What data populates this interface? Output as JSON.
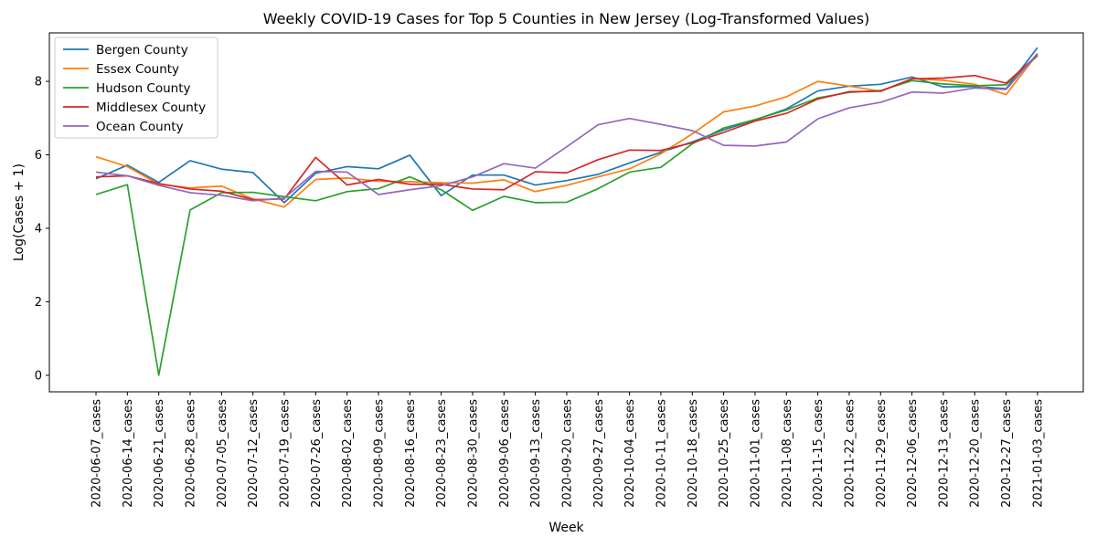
{
  "chart_data": {
    "type": "line",
    "title": "Weekly COVID-19 Cases for Top 5 Counties in New Jersey (Log-Transformed Values)",
    "xlabel": "Week",
    "ylabel": "Log(Cases + 1)",
    "ylim": [
      -0.45,
      9.32
    ],
    "yticks": [
      0,
      2,
      4,
      6,
      8
    ],
    "grid": false,
    "legend_position": "top-left",
    "categories": [
      "2020-06-07_cases",
      "2020-06-14_cases",
      "2020-06-21_cases",
      "2020-06-28_cases",
      "2020-07-05_cases",
      "2020-07-12_cases",
      "2020-07-19_cases",
      "2020-07-26_cases",
      "2020-08-02_cases",
      "2020-08-09_cases",
      "2020-08-16_cases",
      "2020-08-23_cases",
      "2020-08-30_cases",
      "2020-09-06_cases",
      "2020-09-13_cases",
      "2020-09-20_cases",
      "2020-09-27_cases",
      "2020-10-04_cases",
      "2020-10-11_cases",
      "2020-10-18_cases",
      "2020-10-25_cases",
      "2020-11-01_cases",
      "2020-11-08_cases",
      "2020-11-15_cases",
      "2020-11-22_cases",
      "2020-11-29_cases",
      "2020-12-06_cases",
      "2020-12-13_cases",
      "2020-12-20_cases",
      "2020-12-27_cases",
      "2021-01-03_cases"
    ],
    "series": [
      {
        "name": "Bergen County",
        "color": "#1f77b4",
        "values": [
          5.35,
          5.72,
          5.25,
          5.84,
          5.61,
          5.52,
          4.7,
          5.5,
          5.68,
          5.62,
          5.99,
          4.89,
          5.45,
          5.45,
          5.18,
          5.3,
          5.47,
          5.78,
          6.07,
          6.35,
          6.68,
          6.95,
          7.25,
          7.74,
          7.87,
          7.92,
          8.12,
          7.85,
          7.86,
          7.8,
          8.92
        ]
      },
      {
        "name": "Essex County",
        "color": "#ff7f0e",
        "values": [
          5.95,
          5.68,
          5.2,
          5.1,
          5.15,
          4.8,
          4.58,
          5.33,
          5.37,
          5.28,
          5.27,
          5.24,
          5.23,
          5.32,
          5.0,
          5.17,
          5.4,
          5.62,
          6.03,
          6.57,
          7.17,
          7.33,
          7.58,
          8.0,
          7.87,
          7.73,
          8.07,
          8.03,
          7.92,
          7.64,
          8.75
        ]
      },
      {
        "name": "Hudson County",
        "color": "#2ca02c",
        "values": [
          4.92,
          5.19,
          0.0,
          4.5,
          4.97,
          4.98,
          4.86,
          4.75,
          5.0,
          5.08,
          5.4,
          5.05,
          4.49,
          4.87,
          4.7,
          4.71,
          5.08,
          5.53,
          5.66,
          6.3,
          6.73,
          6.96,
          7.22,
          7.55,
          7.7,
          7.75,
          8.02,
          7.93,
          7.88,
          7.91,
          8.7
        ]
      },
      {
        "name": "Middlesex County",
        "color": "#d62728",
        "values": [
          5.4,
          5.43,
          5.22,
          5.07,
          5.01,
          4.78,
          4.8,
          5.93,
          5.18,
          5.33,
          5.2,
          5.2,
          5.07,
          5.05,
          5.54,
          5.51,
          5.87,
          6.13,
          6.12,
          6.33,
          6.61,
          6.92,
          7.13,
          7.52,
          7.72,
          7.73,
          8.07,
          8.09,
          8.16,
          7.95,
          8.72
        ]
      },
      {
        "name": "Ocean County",
        "color": "#9467bd",
        "values": [
          5.53,
          5.43,
          5.17,
          4.97,
          4.9,
          4.75,
          4.82,
          5.55,
          5.53,
          4.92,
          5.05,
          5.16,
          5.4,
          5.76,
          5.64,
          6.22,
          6.82,
          6.99,
          6.83,
          6.66,
          6.26,
          6.24,
          6.35,
          6.98,
          7.28,
          7.43,
          7.71,
          7.68,
          7.82,
          7.78,
          8.76
        ]
      }
    ]
  }
}
